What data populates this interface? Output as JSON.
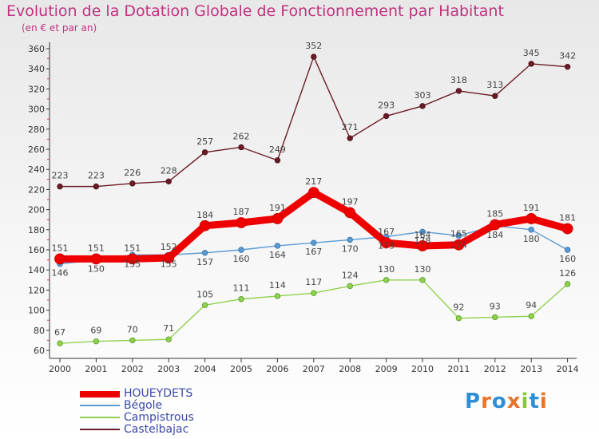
{
  "title": "Evolution de la Dotation Globale de Fonctionnement par Habitant",
  "subtitle": "(en € et par an)",
  "brand": "Proxiti",
  "brand_colors": [
    "#2e8fd6",
    "#e8732a",
    "#2e8fd6",
    "#e8732a",
    "#8cc63f",
    "#2e8fd6",
    "#e8732a"
  ],
  "chart_data": {
    "type": "line",
    "title": "Evolution de la Dotation Globale de Fonctionnement par Habitant",
    "subtitle": "(en € et par an)",
    "xlabel": "",
    "ylabel": "",
    "ylim": [
      60,
      360
    ],
    "yticks": [
      60,
      80,
      100,
      120,
      140,
      160,
      180,
      200,
      220,
      240,
      260,
      280,
      300,
      320,
      340,
      360
    ],
    "grid": false,
    "legend": "bottom-left",
    "x": [
      "2000",
      "2001",
      "2002",
      "2003",
      "2004",
      "2005",
      "2006",
      "2007",
      "2008",
      "2009",
      "2010",
      "2011",
      "2012",
      "2013",
      "2014"
    ],
    "series": [
      {
        "name": "HOUEYDETS",
        "color": "#ee0000",
        "values": [
          151,
          151,
          151,
          152,
          184,
          187,
          191,
          217,
          197,
          167,
          164,
          165,
          185,
          191,
          181
        ]
      },
      {
        "name": "Bégole",
        "color": "#5a9bd4",
        "values": [
          146,
          150,
          155,
          155,
          157,
          160,
          164,
          167,
          170,
          173,
          178,
          174,
          184,
          180,
          160
        ]
      },
      {
        "name": "Campistrous",
        "color": "#8fd14f",
        "values": [
          67,
          69,
          70,
          71,
          105,
          111,
          114,
          117,
          124,
          130,
          130,
          92,
          93,
          94,
          126
        ]
      },
      {
        "name": "Castelbajac",
        "color": "#6b1b25",
        "values": [
          223,
          223,
          226,
          228,
          257,
          262,
          249,
          352,
          271,
          293,
          303,
          318,
          313,
          345,
          342
        ]
      }
    ]
  }
}
